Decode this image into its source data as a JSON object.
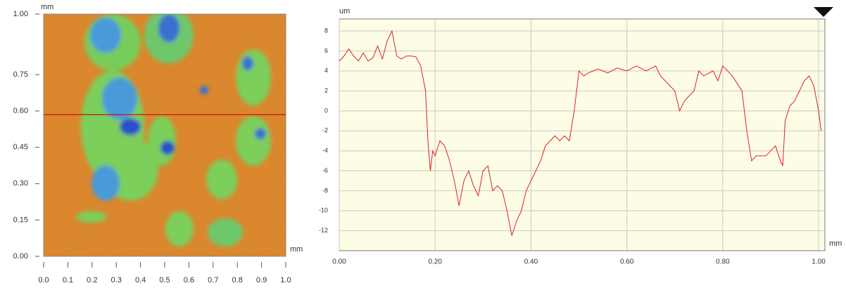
{
  "chart_data": [
    {
      "type": "heatmap",
      "y_unit": "mm",
      "x_unit": "mm",
      "xlim": [
        0,
        1
      ],
      "ylim": [
        0,
        1
      ],
      "xticks": [
        {
          "value": 0,
          "label": "0.0"
        },
        0.1,
        0.2,
        0.3,
        0.4,
        0.5,
        0.6,
        0.7,
        0.8,
        0.9,
        {
          "value": 1,
          "label": "1.0"
        }
      ],
      "yticks": [
        {
          "value": 0,
          "label": "0.00"
        },
        0.15,
        {
          "value": 0.3,
          "label": "0.30"
        },
        0.45,
        {
          "value": 0.6,
          "label": "0.60"
        },
        0.75,
        {
          "value": 1,
          "label": "1.00"
        }
      ],
      "profile_y": 0.585,
      "profile_color": "#d01010"
    },
    {
      "type": "line",
      "y_unit": "um",
      "x_unit": "mm",
      "xlim": [
        0,
        1.013
      ],
      "ylim": [
        -14,
        9.2
      ],
      "xticks": [
        {
          "value": 0,
          "label": "0.00"
        },
        {
          "value": 0.2,
          "label": "0.20"
        },
        {
          "value": 0.4,
          "label": "0.40"
        },
        {
          "value": 0.6,
          "label": "0.60"
        },
        {
          "value": 0.8,
          "label": "0.80"
        },
        {
          "value": 1,
          "label": "1.00"
        }
      ],
      "yticks": [
        8,
        6,
        4,
        2,
        0,
        -2,
        -4,
        -6,
        -8,
        -10,
        -12
      ],
      "grid": true,
      "color": "#e02020",
      "x": [
        0,
        0.01,
        0.02,
        0.03,
        0.04,
        0.05,
        0.06,
        0.07,
        0.08,
        0.09,
        0.1,
        0.11,
        0.12,
        0.13,
        0.14,
        0.15,
        0.16,
        0.17,
        0.18,
        0.185,
        0.19,
        0.195,
        0.2,
        0.21,
        0.22,
        0.23,
        0.24,
        0.25,
        0.26,
        0.27,
        0.28,
        0.29,
        0.3,
        0.31,
        0.32,
        0.33,
        0.34,
        0.35,
        0.36,
        0.37,
        0.38,
        0.39,
        0.4,
        0.41,
        0.42,
        0.43,
        0.44,
        0.45,
        0.46,
        0.47,
        0.48,
        0.49,
        0.5,
        0.51,
        0.52,
        0.54,
        0.56,
        0.58,
        0.6,
        0.62,
        0.64,
        0.66,
        0.67,
        0.68,
        0.7,
        0.71,
        0.72,
        0.74,
        0.75,
        0.76,
        0.78,
        0.79,
        0.8,
        0.82,
        0.84,
        0.85,
        0.86,
        0.87,
        0.88,
        0.89,
        0.9,
        0.91,
        0.92,
        0.925,
        0.93,
        0.94,
        0.95,
        0.96,
        0.97,
        0.98,
        0.99,
        1,
        1.005
      ],
      "values": [
        5,
        5.5,
        6.2,
        5.5,
        5,
        5.8,
        5,
        5.3,
        6.5,
        5.2,
        7,
        8,
        5.5,
        5.2,
        5.5,
        5.5,
        5.4,
        4.5,
        2,
        -3,
        -6,
        -4,
        -4.5,
        -3,
        -3.5,
        -5,
        -7,
        -9.5,
        -7,
        -6,
        -7.5,
        -8.5,
        -6,
        -5.5,
        -8,
        -7.5,
        -8,
        -10,
        -12.5,
        -11,
        -10,
        -8,
        -7,
        -6,
        -5,
        -3.5,
        -3,
        -2.5,
        -3,
        -2.5,
        -3,
        0,
        4,
        3.5,
        3.8,
        4.2,
        3.8,
        4.3,
        4,
        4.5,
        4,
        4.5,
        3.5,
        3,
        2,
        0,
        1,
        2,
        4,
        3.5,
        4,
        3,
        4.5,
        3.5,
        2,
        -2,
        -5,
        -4.5,
        -4.5,
        -4.5,
        -4,
        -3.5,
        -5,
        -5.5,
        -1,
        0.5,
        1,
        2,
        3,
        3.5,
        2.5,
        0,
        -2
      ]
    }
  ]
}
